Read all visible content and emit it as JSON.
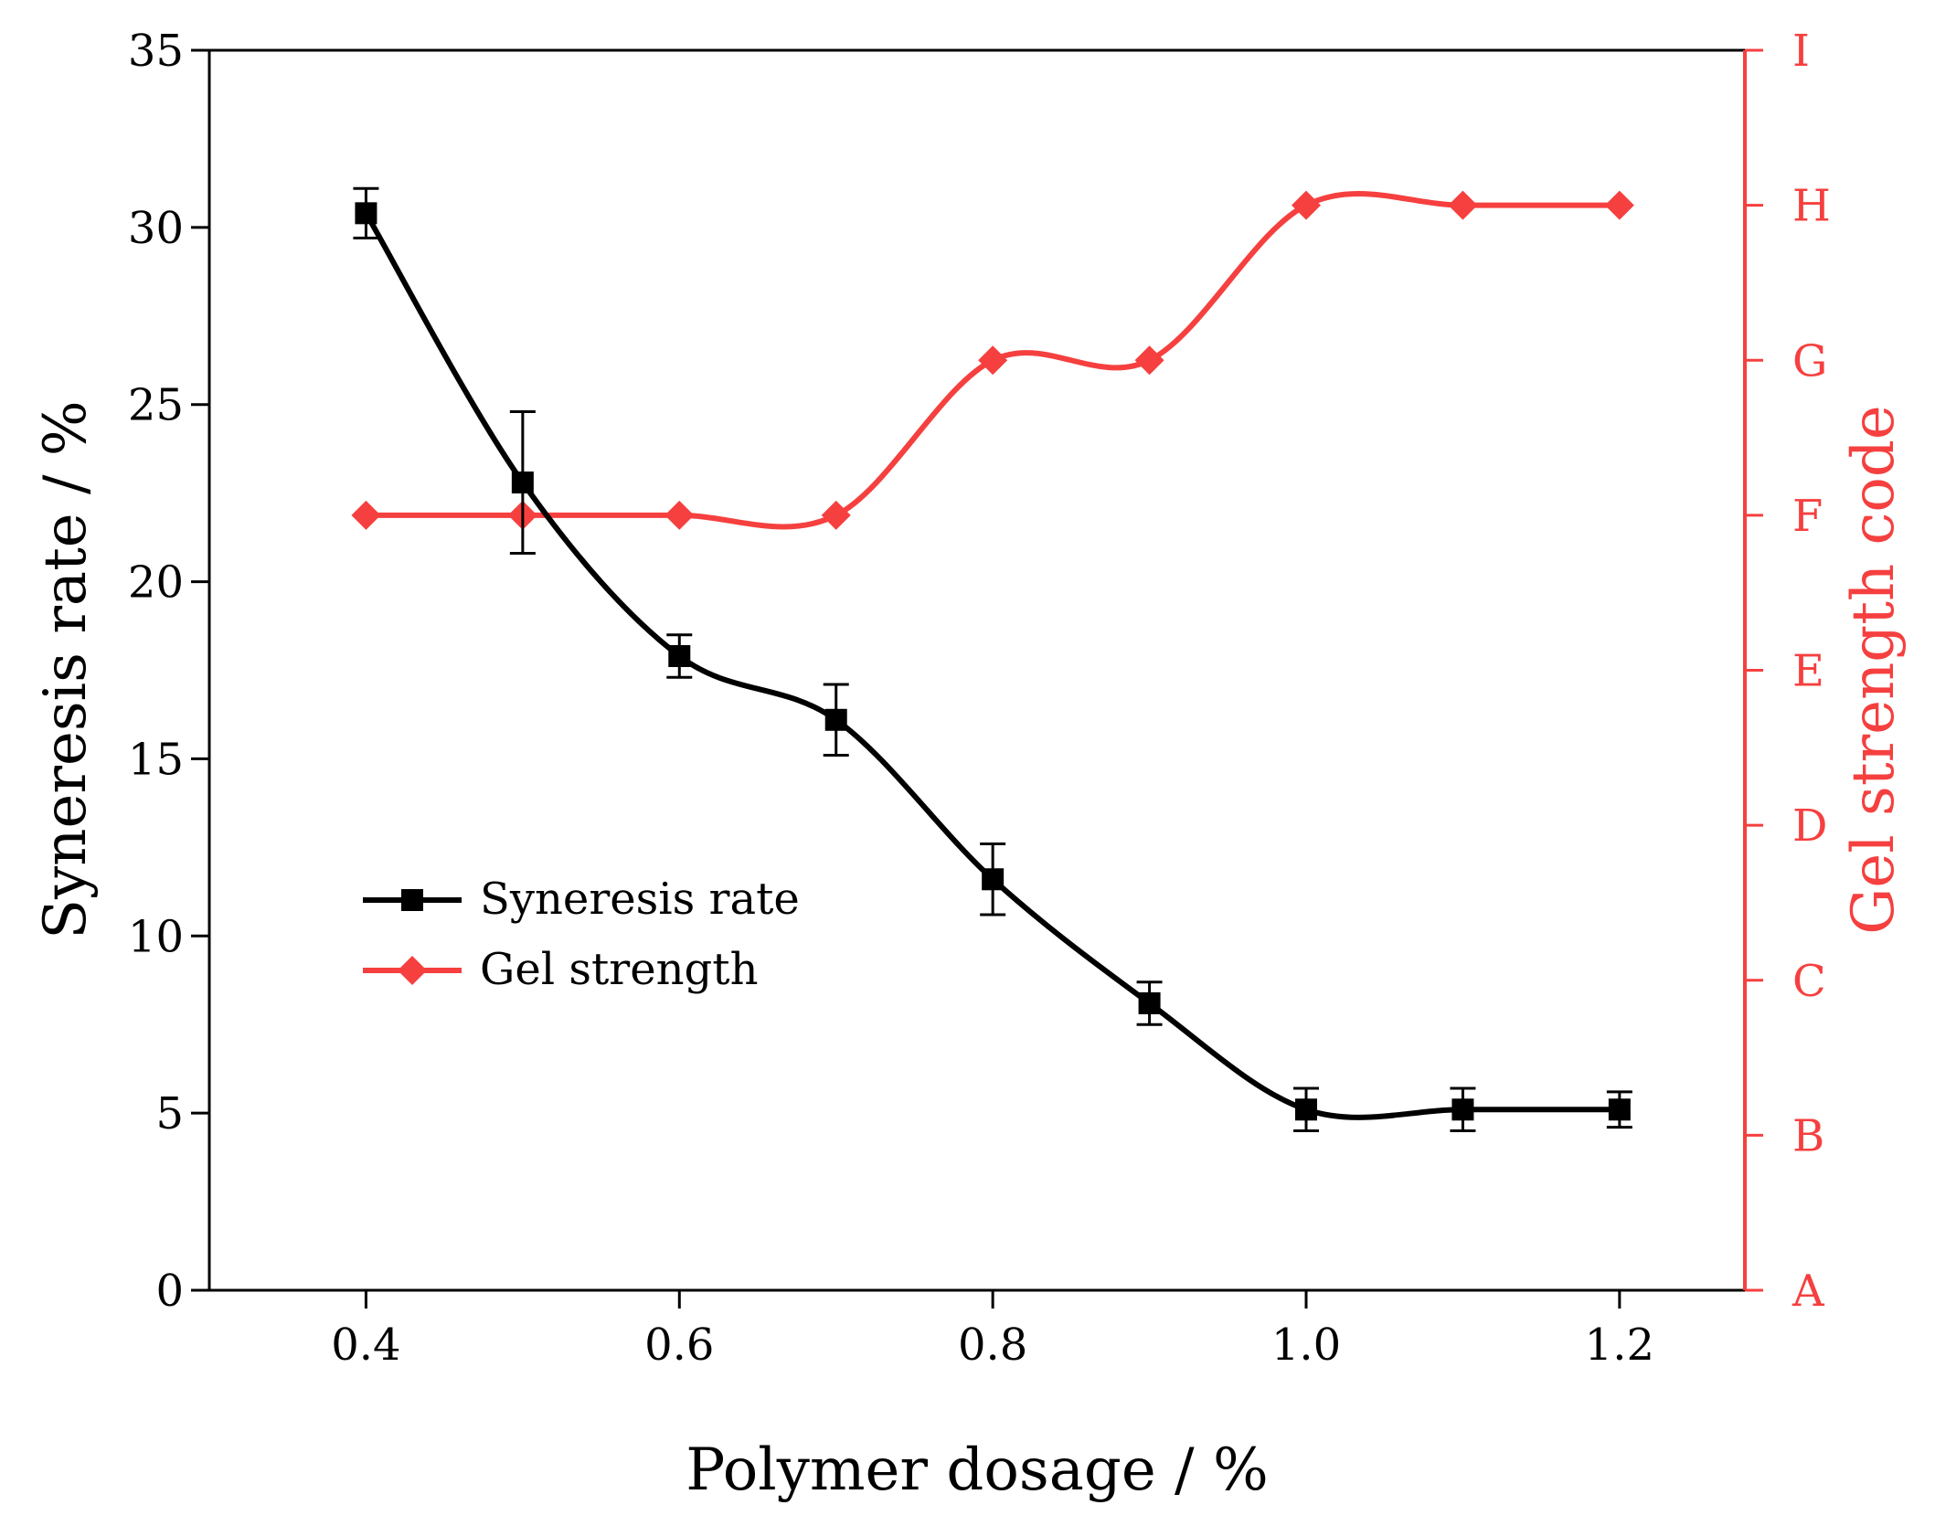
{
  "chart_data": {
    "type": "line",
    "xlabel": "Polymer dosage / %",
    "ylabel": "Syneresis rate / %",
    "y2label": "Gel strength code",
    "x": [
      0.4,
      0.5,
      0.6,
      0.7,
      0.8,
      0.9,
      1.0,
      1.1,
      1.2
    ],
    "xlim": [
      0.3,
      1.28
    ],
    "xticks": [
      "0.4",
      "0.6",
      "0.8",
      "1.0",
      "1.2"
    ],
    "ylim": [
      0,
      35
    ],
    "yticks": [
      "0",
      "5",
      "10",
      "15",
      "20",
      "25",
      "30",
      "35"
    ],
    "y2categories": [
      "A",
      "B",
      "C",
      "D",
      "E",
      "F",
      "G",
      "H",
      "I"
    ],
    "series": [
      {
        "name": "Syneresis rate",
        "axis": "left",
        "marker": "square",
        "color": "#000000",
        "values": [
          30.4,
          22.8,
          17.9,
          16.1,
          11.6,
          8.1,
          5.1,
          5.1,
          5.1
        ],
        "errors": [
          0.7,
          2.0,
          0.6,
          1.0,
          1.0,
          0.6,
          0.6,
          0.6,
          0.5
        ]
      },
      {
        "name": "Gel strength",
        "axis": "right",
        "marker": "diamond",
        "color": "#f5403f",
        "values": [
          "F",
          "F",
          "F",
          "F",
          "G",
          "G",
          "H",
          "H",
          "H"
        ]
      }
    ],
    "legend": "center-left"
  }
}
